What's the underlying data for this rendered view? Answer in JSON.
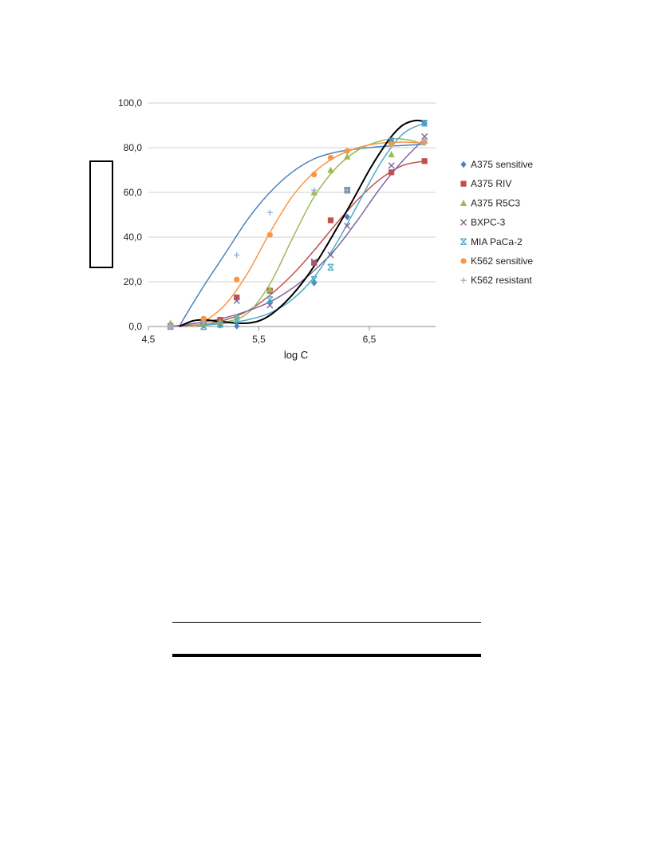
{
  "chart_data": {
    "type": "scatter",
    "xlabel": "log C",
    "ylabel": "",
    "xlim": [
      4.5,
      7.1
    ],
    "ylim": [
      0,
      100
    ],
    "x_ticks": [
      4.5,
      5.5,
      6.5
    ],
    "x_tick_labels": [
      "4,5",
      "5,5",
      "6,5"
    ],
    "y_ticks": [
      0,
      20,
      40,
      60,
      80,
      100
    ],
    "y_tick_labels": [
      "0,0",
      "20,0",
      "40,0",
      "60,0",
      "80,0",
      "100,0"
    ],
    "grid": "horizontal",
    "legend_position": "right",
    "series": [
      {
        "name": "A375 sensitive",
        "marker": "diamond",
        "color": "#4f81bd",
        "x": [
          4.7,
          5.0,
          5.15,
          5.3,
          5.6,
          6.0,
          6.3,
          6.7,
          7.0
        ],
        "y": [
          0.0,
          0.5,
          0.5,
          0.2,
          11.0,
          19.5,
          49.0,
          83.0,
          91.0
        ]
      },
      {
        "name": "A375 RIV",
        "marker": "square",
        "color": "#c0504d",
        "x": [
          4.7,
          5.0,
          5.15,
          5.3,
          5.6,
          6.0,
          6.15,
          6.3,
          6.7,
          7.0
        ],
        "y": [
          0.0,
          2.0,
          3.0,
          13.0,
          16.0,
          28.5,
          47.5,
          61.0,
          69.0,
          74.0
        ]
      },
      {
        "name": "A375 R5C3",
        "marker": "triangle",
        "color": "#9bbb59",
        "x": [
          4.7,
          5.0,
          5.15,
          5.3,
          5.6,
          6.0,
          6.15,
          6.3,
          6.7,
          7.0
        ],
        "y": [
          1.5,
          1.0,
          2.0,
          4.0,
          16.5,
          60.0,
          70.0,
          76.0,
          77.0,
          83.0
        ]
      },
      {
        "name": "BXPC-3",
        "marker": "x",
        "color": "#8064a2",
        "x": [
          4.7,
          5.0,
          5.15,
          5.3,
          5.6,
          6.0,
          6.15,
          6.3,
          6.7,
          7.0
        ],
        "y": [
          0.0,
          0.0,
          1.0,
          11.5,
          9.5,
          29.0,
          32.0,
          45.0,
          72.0,
          85.0
        ]
      },
      {
        "name": "MIA PaCa-2",
        "marker": "asterisk",
        "color": "#4bacc6",
        "x": [
          4.7,
          5.0,
          5.15,
          5.3,
          5.6,
          6.0,
          6.15,
          6.3,
          6.7,
          7.0
        ],
        "y": [
          0.0,
          0.0,
          1.0,
          3.0,
          12.0,
          21.0,
          26.5,
          61.0,
          83.0,
          91.0
        ]
      },
      {
        "name": "K562 sensitive",
        "marker": "circle",
        "color": "#f79646",
        "x": [
          4.7,
          5.0,
          5.3,
          5.6,
          6.0,
          6.15,
          6.3,
          6.7,
          7.0
        ],
        "y": [
          0.0,
          3.5,
          21.0,
          41.0,
          68.0,
          75.5,
          78.5,
          81.5,
          82.5
        ]
      },
      {
        "name": "K562 resistant",
        "marker": "plus",
        "color": "#95b3d7",
        "x": [
          4.7,
          5.0,
          5.3,
          5.6,
          6.0,
          6.3,
          6.7,
          7.0
        ],
        "y": [
          0.0,
          2.0,
          32.0,
          51.0,
          61.0,
          61.0,
          81.0,
          82.0
        ]
      }
    ],
    "trendlines": [
      {
        "color": "#4f81bd",
        "x": [
          4.78,
          4.85,
          5.0,
          5.2,
          5.4,
          5.6,
          5.8,
          6.0,
          6.2,
          6.4,
          6.6,
          6.8,
          7.0
        ],
        "y": [
          0,
          6,
          18,
          33,
          48,
          60,
          69,
          75,
          78,
          79.5,
          80.5,
          81,
          81.5
        ]
      },
      {
        "color": "#c0504d",
        "x": [
          4.7,
          5.0,
          5.2,
          5.4,
          5.6,
          5.8,
          6.0,
          6.2,
          6.4,
          6.6,
          6.8,
          7.0
        ],
        "y": [
          0,
          1,
          3,
          7,
          14,
          23,
          34,
          46,
          57,
          66,
          72,
          74
        ]
      },
      {
        "color": "#9bbb59",
        "x": [
          4.85,
          5.0,
          5.2,
          5.4,
          5.6,
          5.8,
          6.0,
          6.2,
          6.4,
          6.6,
          6.75,
          6.9,
          7.0
        ],
        "y": [
          0,
          1,
          2,
          6,
          19,
          39,
          58,
          71,
          79,
          83,
          84,
          83,
          81
        ]
      },
      {
        "color": "#8064a2",
        "x": [
          4.7,
          5.0,
          5.2,
          5.4,
          5.6,
          5.8,
          6.0,
          6.2,
          6.4,
          6.6,
          6.8,
          7.0
        ],
        "y": [
          0,
          2,
          4,
          7,
          11,
          17,
          25,
          35,
          48,
          62,
          74,
          84
        ]
      },
      {
        "color": "#4bacc6",
        "x": [
          4.9,
          5.0,
          5.2,
          5.4,
          5.6,
          5.8,
          6.0,
          6.2,
          6.4,
          6.6,
          6.8,
          7.0
        ],
        "y": [
          0,
          0.5,
          1.5,
          3,
          6,
          12,
          22,
          37,
          55,
          73,
          86,
          91
        ]
      },
      {
        "color": "#f79646",
        "x": [
          4.9,
          5.0,
          5.2,
          5.4,
          5.6,
          5.8,
          6.0,
          6.2,
          6.4,
          6.6,
          6.8,
          7.0
        ],
        "y": [
          0,
          2,
          10,
          24,
          42,
          58,
          69,
          76,
          80,
          82,
          82.5,
          82
        ]
      },
      {
        "color": "#000000",
        "x": [
          4.78,
          4.9,
          5.0,
          5.1,
          5.2,
          5.3,
          5.4,
          5.5,
          5.6,
          5.7,
          5.8,
          5.9,
          6.0,
          6.1,
          6.2,
          6.3,
          6.4,
          6.5,
          6.6,
          6.7,
          6.8,
          6.9,
          6.97,
          7.0
        ],
        "y": [
          0,
          2.5,
          3.0,
          2.5,
          2.0,
          1.5,
          1.5,
          2.5,
          5.0,
          9.0,
          14.0,
          20.0,
          27.0,
          35.0,
          43.5,
          52.0,
          61.0,
          70.0,
          78.0,
          85.0,
          90.0,
          92.0,
          92.0,
          91.0
        ]
      }
    ]
  }
}
